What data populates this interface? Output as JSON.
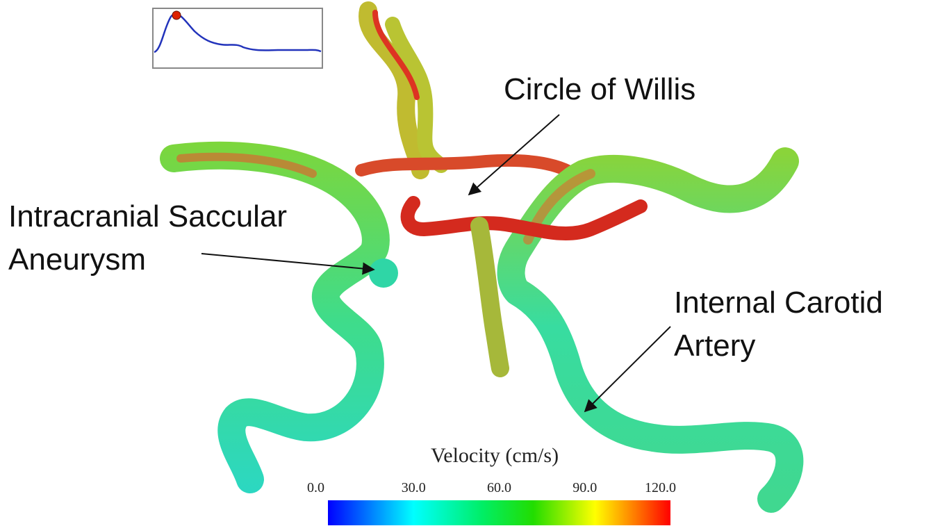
{
  "annotations": [
    {
      "lines": [
        "Circle of Willis"
      ]
    },
    {
      "lines": [
        "Intracranial Saccular",
        "Aneurysm"
      ]
    },
    {
      "lines": [
        "Internal Carotid",
        "Artery"
      ]
    }
  ],
  "colorbar": {
    "title": "Velocity (cm/s)",
    "range": [
      0,
      120
    ],
    "ticks": [
      {
        "value": 0,
        "label": "0.0"
      },
      {
        "value": 30,
        "label": "30.0"
      },
      {
        "value": 60,
        "label": "60.0"
      },
      {
        "value": 90,
        "label": "90.0"
      },
      {
        "value": 120,
        "label": "120.0"
      }
    ]
  }
}
